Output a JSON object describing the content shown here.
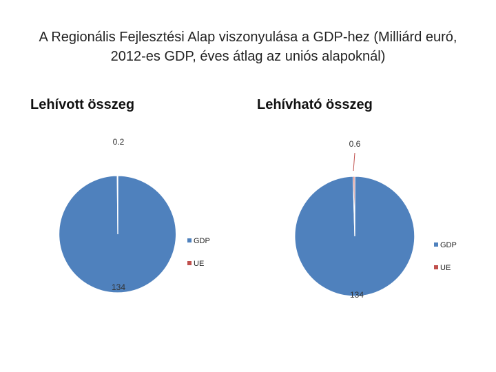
{
  "title": "A Regionális Fejlesztési Alap viszonyulása a GDP-hez (Milliárd euró, 2012-es GDP, éves átlag az uniós alapoknál)",
  "colors": {
    "GDP": "#4f81bd",
    "UE": "#c0504d"
  },
  "chart_data": [
    {
      "type": "pie",
      "title": "Lehívott összeg",
      "labels": [
        "GDP",
        "UE"
      ],
      "values": [
        134,
        0.2
      ],
      "data_labels": [
        "134",
        "0.2"
      ],
      "legend": "right"
    },
    {
      "type": "pie",
      "title": "Lehívható összeg",
      "labels": [
        "GDP",
        "UE"
      ],
      "values": [
        134,
        0.6
      ],
      "data_labels": [
        "134",
        "0.6"
      ],
      "legend": "right"
    }
  ]
}
